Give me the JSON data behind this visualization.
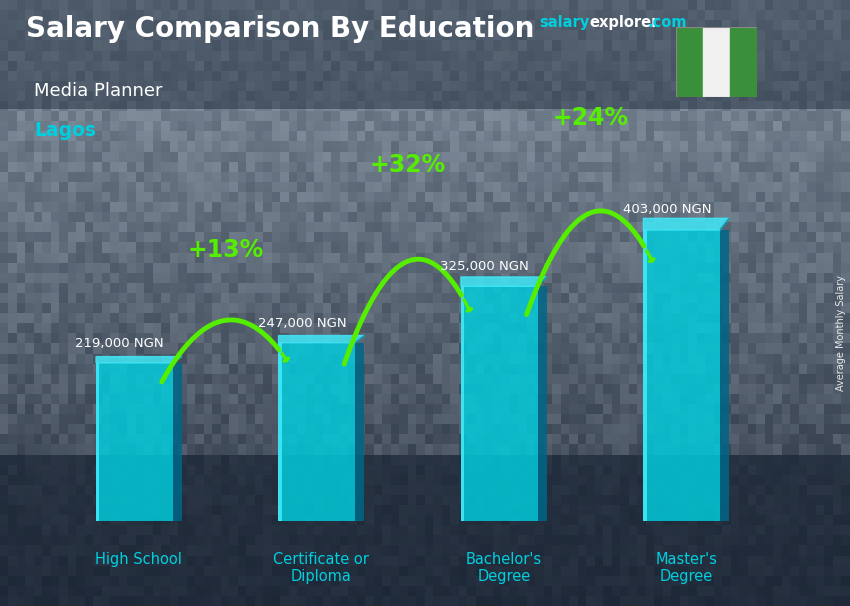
{
  "title_main": "Salary Comparison By Education",
  "subtitle1": "Media Planner",
  "subtitle2": "Lagos",
  "ylabel": "Average Monthly Salary",
  "categories": [
    "High School",
    "Certificate or\nDiploma",
    "Bachelor's\nDegree",
    "Master's\nDegree"
  ],
  "values": [
    219000,
    247000,
    325000,
    403000
  ],
  "value_labels": [
    "219,000 NGN",
    "247,000 NGN",
    "325,000 NGN",
    "403,000 NGN"
  ],
  "pct_labels": [
    "+13%",
    "+32%",
    "+24%"
  ],
  "bar_color": "#00cfdf",
  "bar_color_light": "#40e8f8",
  "bar_color_dark": "#0088aa",
  "bar_color_side": "#006688",
  "bg_color_top": "#7a8a99",
  "bg_color_bottom": "#3a4555",
  "text_color_white": "#ffffff",
  "text_color_cyan": "#00cfdf",
  "text_color_green": "#55ee00",
  "arrow_color": "#55ee00",
  "website_salary": "salary",
  "website_explorer": "explorer",
  "website_com": ".com",
  "figsize": [
    8.5,
    6.06
  ],
  "dpi": 100
}
